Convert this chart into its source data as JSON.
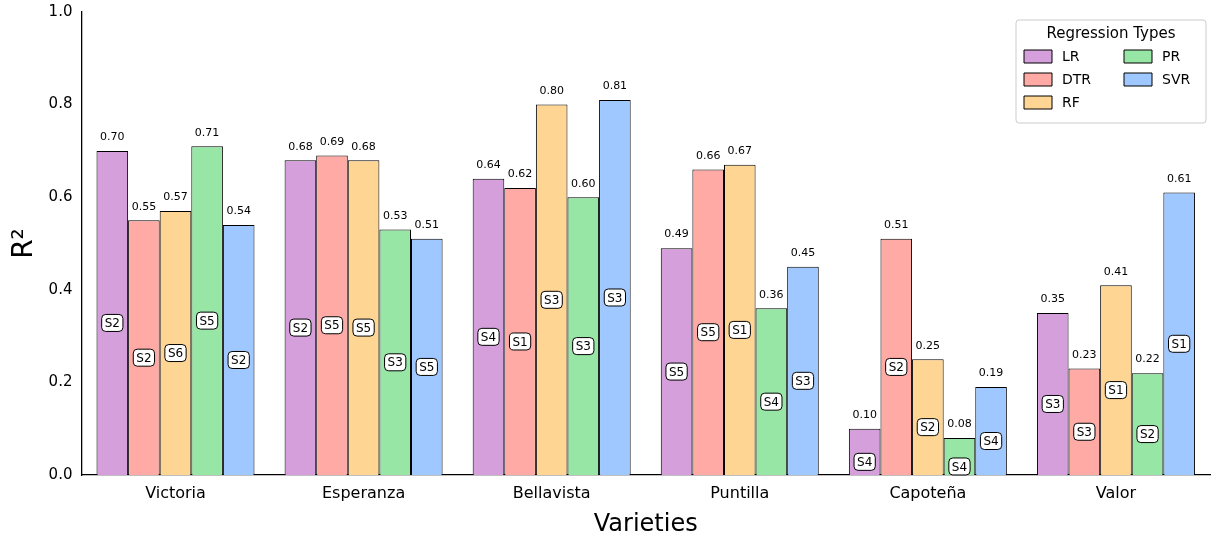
{
  "chart_data": {
    "type": "bar",
    "xlabel": "Varieties",
    "ylabel": "R²",
    "legend_title": "Regression Types",
    "legend": "top right",
    "grid": false,
    "categories": [
      "Victoria",
      "Esperanza",
      "Bellavista",
      "Puntilla",
      "Capoteña",
      "Valor"
    ],
    "ylim": [
      0,
      1
    ],
    "yticks": [
      {
        "value": 0,
        "label": "0.0"
      },
      {
        "value": 0.2,
        "label": "0.2"
      },
      {
        "value": 0.4,
        "label": "0.4"
      },
      {
        "value": 0.6,
        "label": "0.6"
      },
      {
        "value": 0.8,
        "label": "0.8"
      },
      {
        "value": 1,
        "label": "1.0"
      }
    ],
    "series": [
      {
        "name": "LR",
        "color": "#d49fdb",
        "values": [
          0.7,
          0.68,
          0.64,
          0.49,
          0.1,
          0.35
        ],
        "value_labels": [
          "0.70",
          "0.68",
          "0.64",
          "0.49",
          "0.10",
          "0.35"
        ]
      },
      {
        "name": "DTR",
        "color": "#ffaaa5",
        "values": [
          0.55,
          0.69,
          0.62,
          0.66,
          0.51,
          0.23
        ],
        "value_labels": [
          "0.55",
          "0.69",
          "0.62",
          "0.66",
          "0.51",
          "0.23"
        ]
      },
      {
        "name": "RF",
        "color": "#ffd593",
        "values": [
          0.57,
          0.68,
          0.8,
          0.67,
          0.25,
          0.41
        ],
        "value_labels": [
          "0.57",
          "0.68",
          "0.80",
          "0.67",
          "0.25",
          "0.41"
        ]
      },
      {
        "name": "PR",
        "color": "#98e6a6",
        "values": [
          0.71,
          0.53,
          0.6,
          0.36,
          0.08,
          0.22
        ],
        "value_labels": [
          "0.71",
          "0.53",
          "0.60",
          "0.36",
          "0.08",
          "0.22"
        ]
      },
      {
        "name": "SVR",
        "color": "#9ec8ff",
        "values": [
          0.54,
          0.51,
          0.81,
          0.45,
          0.19,
          0.61
        ],
        "value_labels": [
          "0.54",
          "0.51",
          "0.81",
          "0.45",
          "0.19",
          "0.61"
        ]
      }
    ],
    "annotations": [
      "S2",
      "S2",
      "S6",
      "S5",
      "S2",
      "S2",
      "S5",
      "S5",
      "S3",
      "S5",
      "S4",
      "S1",
      "S3",
      "S3",
      "S3",
      "S5",
      "S5",
      "S1",
      "S4",
      "S3",
      "S4",
      "S2",
      "S2",
      "S4",
      "S4",
      "S3",
      "S3",
      "S1",
      "S2",
      "S1"
    ]
  }
}
